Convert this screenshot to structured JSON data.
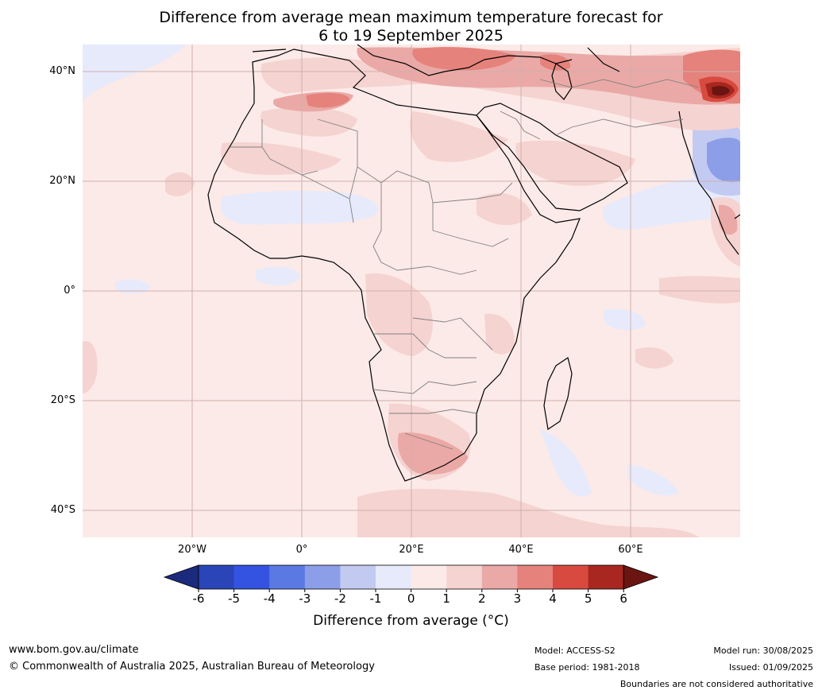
{
  "title": {
    "line1": "Difference from average mean maximum temperature forecast for",
    "line2": "6 to 19 September 2025"
  },
  "map": {
    "region": "Africa",
    "lat_labels": [
      "40°N",
      "20°N",
      "0°",
      "20°S",
      "40°S"
    ],
    "lon_labels": [
      "20°W",
      "0°",
      "20°E",
      "40°E",
      "60°E"
    ],
    "background_color": "#fbeae8",
    "graticule_color": "#d8b5b2"
  },
  "colorbar": {
    "ticks": [
      "-6",
      "-5",
      "-4",
      "-3",
      "-2",
      "-1",
      "0",
      "1",
      "2",
      "3",
      "4",
      "5",
      "6"
    ],
    "colors": [
      "#1c2a7e",
      "#2a45b8",
      "#3353e0",
      "#5b79e2",
      "#8c9ee8",
      "#c3caf2",
      "#e7eafb",
      "#fbeae8",
      "#f5d3d0",
      "#eaa9a6",
      "#e5827c",
      "#d84a3f",
      "#a8271f",
      "#6b1512"
    ],
    "label": "Difference from average ($^\\circ$C)",
    "label_display": "Difference from average (°C)"
  },
  "footer": {
    "website": "www.bom.gov.au/climate",
    "copyright": "© Commonwealth of Australia 2025, Australian Bureau of Meteorology",
    "model": "Model: ACCESS-S2",
    "base_period": "Base period: 1981-2018",
    "model_run": "Model run: 30/08/2025",
    "issued": "Issued: 01/09/2025",
    "disclaimer": "Boundaries are not considered authoritative"
  }
}
